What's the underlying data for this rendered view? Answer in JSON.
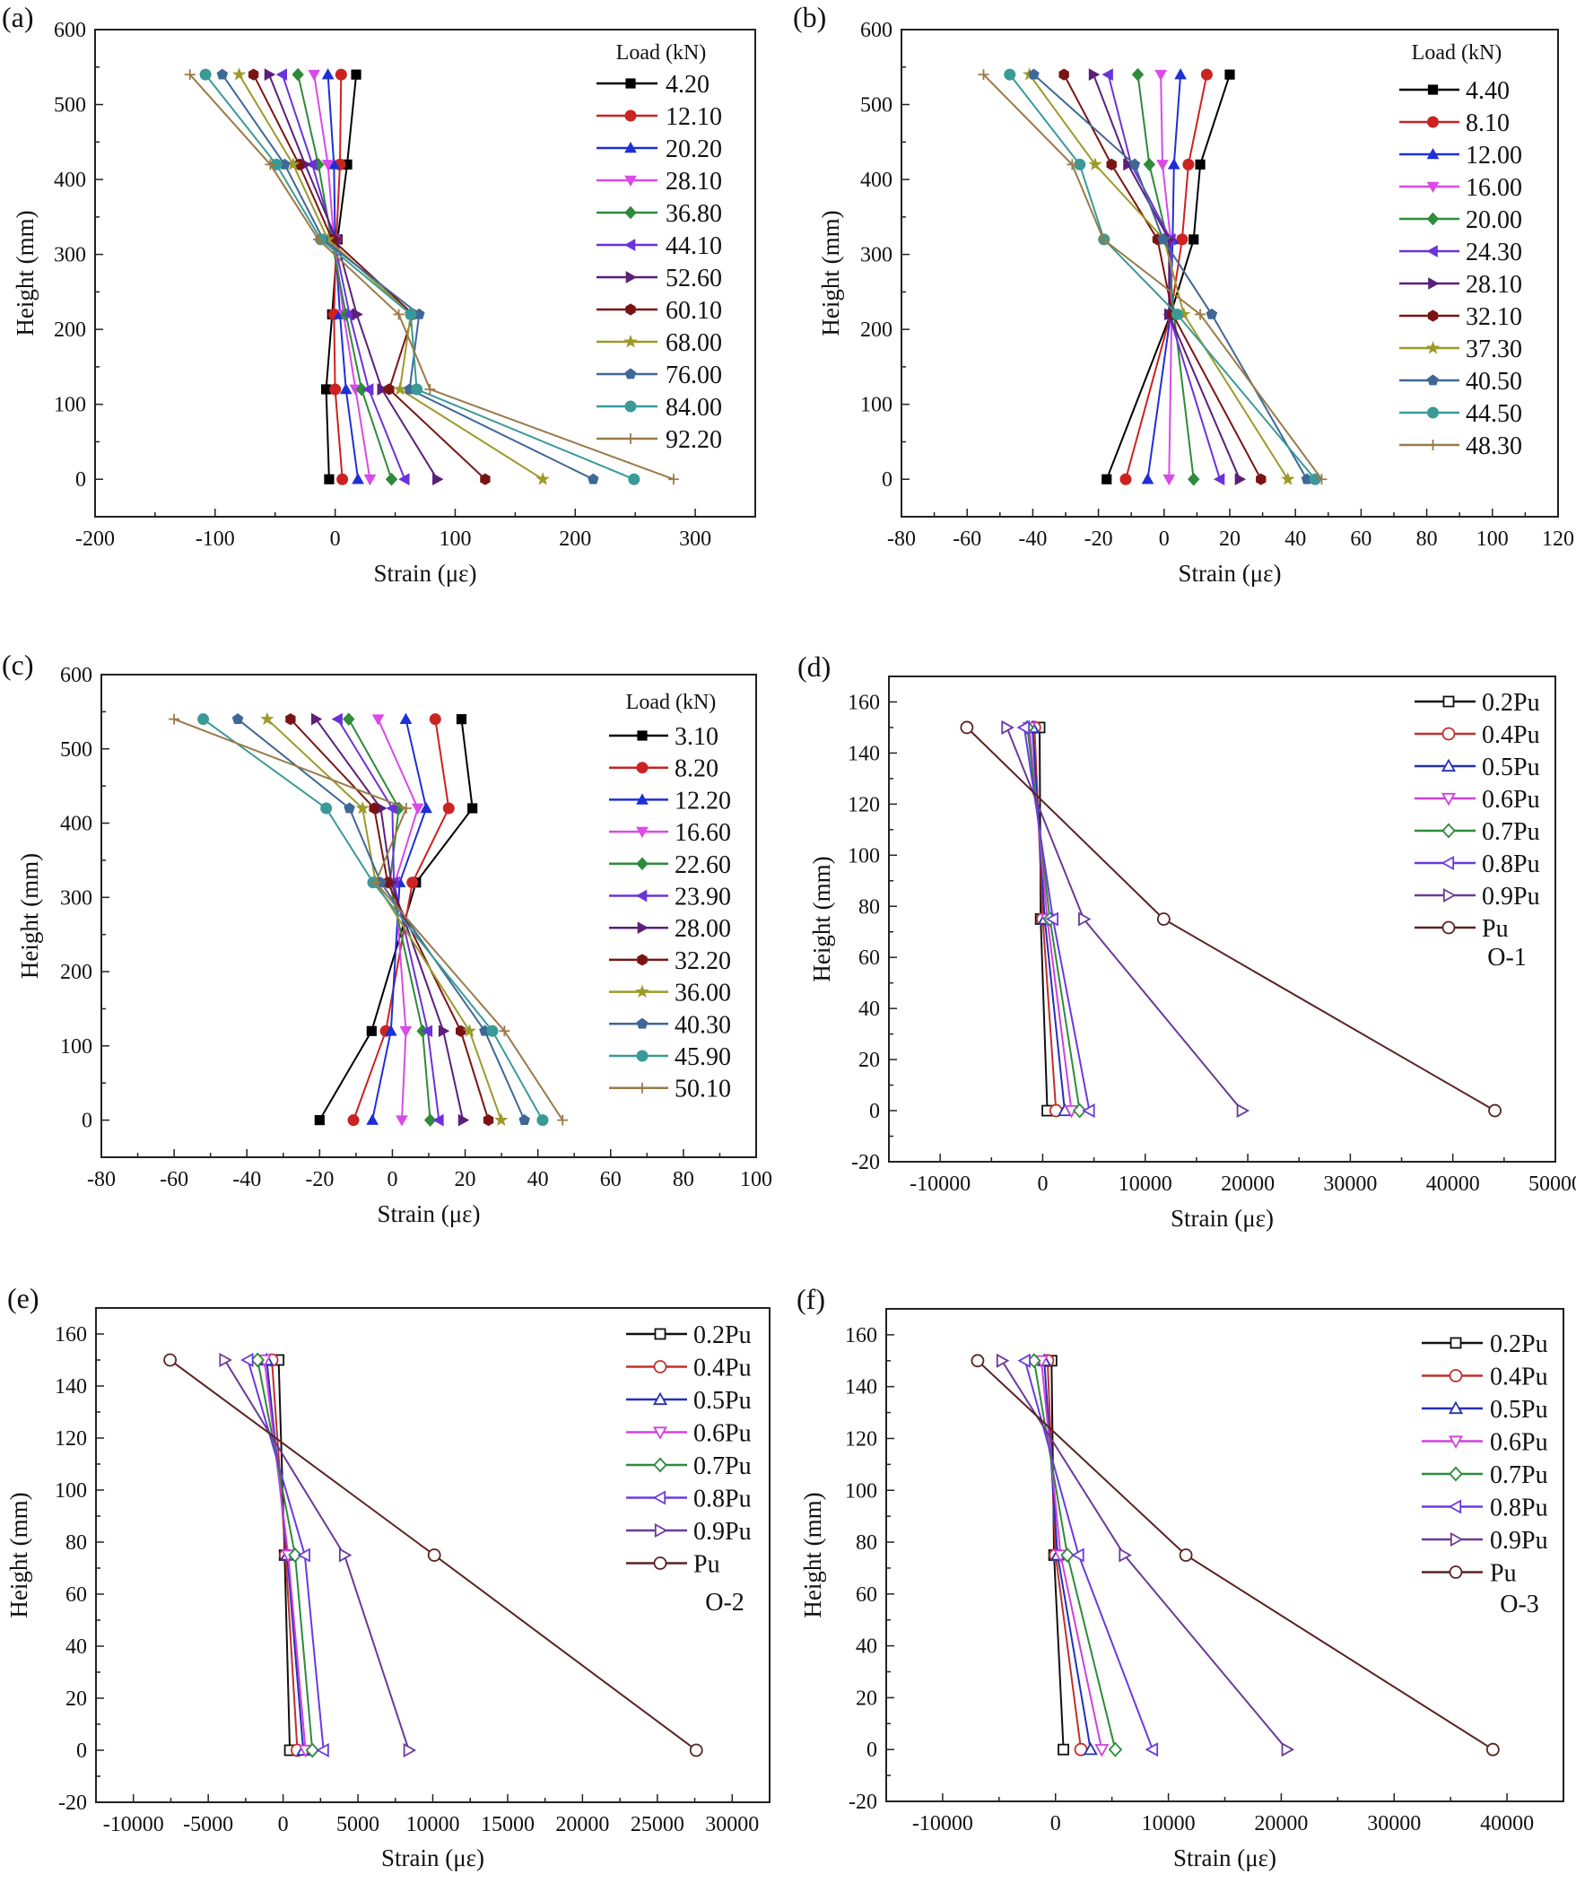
{
  "chart_data": [
    {
      "panel": "(a)",
      "type": "line",
      "xlabel": "Strain (με)",
      "ylabel": "Height (mm)",
      "xlim": [
        -200,
        350
      ],
      "ylim": [
        -50,
        600
      ],
      "xticks": [
        -200,
        -100,
        0,
        100,
        200,
        300
      ],
      "yticks": [
        0,
        100,
        200,
        300,
        400,
        500,
        600
      ],
      "xminor": 50,
      "yminor": 50,
      "legend_title": "Load (kN)",
      "legend_placement": "top-right",
      "y": [
        540,
        420,
        320,
        220,
        120,
        0
      ],
      "series": [
        {
          "name": "4.20",
          "color": "#000000",
          "marker": "square",
          "x": [
            17.5,
            10,
            2,
            -2.5,
            -7.5,
            -5
          ]
        },
        {
          "name": "12.10",
          "color": "#cc2222",
          "marker": "circle",
          "x": [
            5,
            4,
            1,
            -1,
            0,
            6
          ]
        },
        {
          "name": "20.20",
          "color": "#1f2fd6",
          "marker": "triangle-up",
          "x": [
            -6,
            -1,
            0,
            4,
            9,
            19
          ]
        },
        {
          "name": "28.10",
          "color": "#d94ae8",
          "marker": "triangle-down",
          "x": [
            -17.5,
            -6,
            -1,
            7,
            17,
            29
          ]
        },
        {
          "name": "36.80",
          "color": "#2e8b3a",
          "marker": "diamond",
          "x": [
            -31,
            -14,
            -3,
            9,
            22,
            47
          ]
        },
        {
          "name": "44.10",
          "color": "#6a33d9",
          "marker": "triangle-left",
          "x": [
            -44,
            -19,
            -1,
            12,
            28,
            58
          ]
        },
        {
          "name": "52.60",
          "color": "#5c1f7a",
          "marker": "triangle-right",
          "x": [
            -55,
            -25,
            1,
            18,
            39,
            85
          ]
        },
        {
          "name": "60.10",
          "color": "#7a1414",
          "marker": "hexagon",
          "x": [
            -68,
            -30,
            -2.5,
            65,
            45,
            125
          ]
        },
        {
          "name": "68.00",
          "color": "#9c9a2a",
          "marker": "star",
          "x": [
            -80,
            -35,
            -6,
            63,
            54,
            173
          ]
        },
        {
          "name": "76.00",
          "color": "#3f6896",
          "marker": "pentagon",
          "x": [
            -94,
            -42,
            -10,
            70,
            62,
            215
          ]
        },
        {
          "name": "84.00",
          "color": "#3a9a98",
          "marker": "circle",
          "x": [
            -108,
            -49,
            -12,
            63,
            68,
            249
          ]
        },
        {
          "name": "92.20",
          "color": "#9a7a48",
          "marker": "plus",
          "x": [
            -121,
            -54,
            -14,
            53,
            79,
            282
          ]
        }
      ]
    },
    {
      "panel": "(b)",
      "type": "line",
      "xlabel": "Strain (με)",
      "ylabel": "Height (mm)",
      "xlim": [
        -80,
        120
      ],
      "ylim": [
        -50,
        600
      ],
      "xticks": [
        -80,
        -60,
        -40,
        -20,
        0,
        20,
        40,
        60,
        80,
        100,
        120
      ],
      "yticks": [
        0,
        100,
        200,
        300,
        400,
        500,
        600
      ],
      "xminor": 10,
      "yminor": 50,
      "legend_title": "Load (kN)",
      "legend_placement": "top-right",
      "y": [
        540,
        420,
        320,
        220,
        0
      ],
      "series": [
        {
          "name": "4.40",
          "color": "#000000",
          "marker": "square",
          "x": [
            20,
            11,
            9,
            2,
            -17.5
          ]
        },
        {
          "name": "8.10",
          "color": "#cc2222",
          "marker": "circle",
          "x": [
            13,
            7.4,
            5.5,
            2,
            -11.7
          ]
        },
        {
          "name": "12.00",
          "color": "#1f2fd6",
          "marker": "triangle-up",
          "x": [
            5,
            3,
            2.6,
            2,
            -5
          ]
        },
        {
          "name": "16.00",
          "color": "#d94ae8",
          "marker": "triangle-down",
          "x": [
            -1,
            -0.5,
            2,
            2.3,
            1.5
          ]
        },
        {
          "name": "20.00",
          "color": "#2e8b3a",
          "marker": "diamond",
          "x": [
            -8,
            -4.5,
            1,
            3,
            9
          ]
        },
        {
          "name": "24.30",
          "color": "#6a33d9",
          "marker": "triangle-left",
          "x": [
            -17,
            -10,
            2,
            1.5,
            17
          ]
        },
        {
          "name": "28.10",
          "color": "#5c1f7a",
          "marker": "triangle-right",
          "x": [
            -21.5,
            -11,
            1.5,
            1.5,
            23
          ]
        },
        {
          "name": "32.10",
          "color": "#7a1414",
          "marker": "hexagon",
          "x": [
            -30.5,
            -16,
            -2,
            2.6,
            29.5
          ]
        },
        {
          "name": "37.30",
          "color": "#9c9a2a",
          "marker": "star",
          "x": [
            -41,
            -21,
            0,
            6,
            37.7
          ]
        },
        {
          "name": "40.50",
          "color": "#3f6896",
          "marker": "pentagon",
          "x": [
            -39.7,
            -9,
            -0.3,
            14.5,
            43.5
          ]
        },
        {
          "name": "44.50",
          "color": "#3a9a98",
          "marker": "circle",
          "x": [
            -47,
            -25.7,
            -18.3,
            4,
            46
          ]
        },
        {
          "name": "48.30",
          "color": "#9a7a48",
          "marker": "plus",
          "x": [
            -55,
            -28,
            -18.5,
            11,
            48
          ]
        }
      ]
    },
    {
      "panel": "(c)",
      "type": "line",
      "xlabel": "Strain (με)",
      "ylabel": "Height (mm)",
      "xlim": [
        -80,
        100
      ],
      "ylim": [
        -50,
        600
      ],
      "xticks": [
        -80,
        -60,
        -40,
        -20,
        0,
        20,
        40,
        60,
        80,
        100
      ],
      "yticks": [
        0,
        100,
        200,
        300,
        400,
        500,
        600
      ],
      "xminor": 10,
      "yminor": 50,
      "legend_title": "Load (kN)",
      "legend_placement": "top-right",
      "y": [
        540,
        420,
        320,
        120,
        0
      ],
      "series": [
        {
          "name": "3.10",
          "color": "#000000",
          "marker": "square",
          "x": [
            19,
            22,
            6.5,
            -5.7,
            -20
          ]
        },
        {
          "name": "8.20",
          "color": "#cc2222",
          "marker": "circle",
          "x": [
            11.8,
            15.5,
            5.5,
            -1.8,
            -10.7
          ]
        },
        {
          "name": "12.20",
          "color": "#1f2fd6",
          "marker": "triangle-up",
          "x": [
            3.7,
            9.3,
            2,
            -0.4,
            -5.5
          ]
        },
        {
          "name": "16.60",
          "color": "#d94ae8",
          "marker": "triangle-down",
          "x": [
            -3.9,
            7,
            0.7,
            3.7,
            2.6
          ]
        },
        {
          "name": "22.60",
          "color": "#2e8b3a",
          "marker": "diamond",
          "x": [
            -12,
            1.8,
            -0.7,
            8.3,
            10.4
          ]
        },
        {
          "name": "23.90",
          "color": "#6a33d9",
          "marker": "triangle-left",
          "x": [
            -15,
            0,
            0.4,
            9.7,
            12.8
          ]
        },
        {
          "name": "28.00",
          "color": "#5c1f7a",
          "marker": "triangle-right",
          "x": [
            -21,
            -3.2,
            -0.3,
            14,
            19.4
          ]
        },
        {
          "name": "32.20",
          "color": "#7a1414",
          "marker": "hexagon",
          "x": [
            -28,
            -5,
            -1.3,
            18.8,
            26.4
          ]
        },
        {
          "name": "36.00",
          "color": "#9c9a2a",
          "marker": "star",
          "x": [
            -34.4,
            -8.2,
            -4.6,
            21.2,
            29.9
          ]
        },
        {
          "name": "40.30",
          "color": "#3f6896",
          "marker": "pentagon",
          "x": [
            -42.5,
            -11.8,
            -3.2,
            25.4,
            36.3
          ]
        },
        {
          "name": "45.90",
          "color": "#3a9a98",
          "marker": "circle",
          "x": [
            -52,
            -18.2,
            -5.3,
            27.5,
            41.3
          ]
        },
        {
          "name": "50.10",
          "color": "#9a7a48",
          "marker": "plus",
          "x": [
            -60,
            3.8,
            -4.6,
            30.8,
            46.8
          ]
        }
      ]
    },
    {
      "panel": "(d)",
      "type": "line",
      "xlabel": "Strain (με)",
      "ylabel": "Height (mm)",
      "xlim": [
        -15000,
        50000
      ],
      "ylim": [
        -20,
        170
      ],
      "xticks": [
        -10000,
        0,
        10000,
        20000,
        30000,
        40000,
        50000
      ],
      "yticks": [
        -20,
        0,
        20,
        40,
        60,
        80,
        100,
        120,
        140,
        160
      ],
      "xminor": 5000,
      "yminor": 10,
      "annotation": "O-1",
      "legend_placement": "top-right",
      "y": [
        150,
        75,
        0
      ],
      "series": [
        {
          "name": "0.2Pu",
          "color": "#111111",
          "marker": "open-square",
          "x": [
            -300,
            -200,
            450
          ]
        },
        {
          "name": "0.4Pu",
          "color": "#c0302c",
          "marker": "open-circle",
          "x": [
            -800,
            0,
            1300
          ]
        },
        {
          "name": "0.5Pu",
          "color": "#2330b8",
          "marker": "open-triangle-up",
          "x": [
            -1000,
            200,
            2150
          ]
        },
        {
          "name": "0.6Pu",
          "color": "#d040e0",
          "marker": "open-triangle-down",
          "x": [
            -1300,
            450,
            2800
          ]
        },
        {
          "name": "0.7Pu",
          "color": "#2e8b3a",
          "marker": "open-diamond",
          "x": [
            -1500,
            700,
            3600
          ]
        },
        {
          "name": "0.8Pu",
          "color": "#6a3ae0",
          "marker": "open-triangle-left",
          "x": [
            -1800,
            1000,
            4550
          ]
        },
        {
          "name": "0.9Pu",
          "color": "#6a3a98",
          "marker": "open-triangle-right",
          "x": [
            -3500,
            4000,
            19450
          ]
        },
        {
          "name": "Pu",
          "color": "#5a2222",
          "marker": "open-circle",
          "x": [
            -7400,
            11800,
            44100
          ]
        }
      ]
    },
    {
      "panel": "(e)",
      "type": "line",
      "xlabel": "Strain (με)",
      "ylabel": "Height (mm)",
      "xlim": [
        -12500,
        32500
      ],
      "ylim": [
        -20,
        170
      ],
      "xticks": [
        -10000,
        -5000,
        0,
        5000,
        10000,
        15000,
        20000,
        25000,
        30000
      ],
      "yticks": [
        -20,
        0,
        20,
        40,
        60,
        80,
        100,
        120,
        140,
        160
      ],
      "xminor": 2500,
      "yminor": 10,
      "annotation": "O-2",
      "legend_placement": "top-right",
      "y": [
        150,
        75,
        0
      ],
      "series": [
        {
          "name": "0.2Pu",
          "color": "#111111",
          "marker": "open-square",
          "x": [
            -300,
            100,
            450
          ]
        },
        {
          "name": "0.4Pu",
          "color": "#c0302c",
          "marker": "open-circle",
          "x": [
            -750,
            170,
            950
          ]
        },
        {
          "name": "0.5Pu",
          "color": "#2330b8",
          "marker": "open-triangle-up",
          "x": [
            -1100,
            270,
            1350
          ]
        },
        {
          "name": "0.6Pu",
          "color": "#d040e0",
          "marker": "open-triangle-down",
          "x": [
            -1250,
            340,
            1500
          ]
        },
        {
          "name": "0.7Pu",
          "color": "#2e8b3a",
          "marker": "open-diamond",
          "x": [
            -1700,
            800,
            1950
          ]
        },
        {
          "name": "0.8Pu",
          "color": "#6a3ae0",
          "marker": "open-triangle-left",
          "x": [
            -2350,
            1450,
            2700
          ]
        },
        {
          "name": "0.9Pu",
          "color": "#6a3a98",
          "marker": "open-triangle-right",
          "x": [
            -3900,
            4100,
            8400
          ]
        },
        {
          "name": "Pu",
          "color": "#5a2222",
          "marker": "open-circle",
          "x": [
            -7550,
            10100,
            27600
          ]
        }
      ]
    },
    {
      "panel": "(f)",
      "type": "line",
      "xlabel": "Strain (με)",
      "ylabel": "Height (mm)",
      "xlim": [
        -15000,
        45000
      ],
      "ylim": [
        -20,
        170
      ],
      "xticks": [
        -10000,
        0,
        10000,
        20000,
        30000,
        40000
      ],
      "yticks": [
        -20,
        0,
        20,
        40,
        60,
        80,
        100,
        120,
        140,
        160
      ],
      "xminor": 5000,
      "yminor": 10,
      "annotation": "O-3",
      "legend_placement": "top-right",
      "y": [
        150,
        75,
        0
      ],
      "series": [
        {
          "name": "0.2Pu",
          "color": "#111111",
          "marker": "open-square",
          "x": [
            -350,
            -130,
            700
          ]
        },
        {
          "name": "0.4Pu",
          "color": "#c0302c",
          "marker": "open-circle",
          "x": [
            -700,
            0,
            2250
          ]
        },
        {
          "name": "0.5Pu",
          "color": "#2330b8",
          "marker": "open-triangle-up",
          "x": [
            -1000,
            180,
            3100
          ]
        },
        {
          "name": "0.6Pu",
          "color": "#d040e0",
          "marker": "open-triangle-down",
          "x": [
            -1250,
            450,
            4100
          ]
        },
        {
          "name": "0.7Pu",
          "color": "#2e8b3a",
          "marker": "open-diamond",
          "x": [
            -1900,
            1050,
            5300
          ]
        },
        {
          "name": "0.8Pu",
          "color": "#6a3ae0",
          "marker": "open-triangle-left",
          "x": [
            -2700,
            2050,
            8600
          ]
        },
        {
          "name": "0.9Pu",
          "color": "#6a3a98",
          "marker": "open-triangle-right",
          "x": [
            -4750,
            6100,
            20500
          ]
        },
        {
          "name": "Pu",
          "color": "#5a2222",
          "marker": "open-circle",
          "x": [
            -6900,
            11550,
            38750
          ]
        }
      ]
    }
  ]
}
